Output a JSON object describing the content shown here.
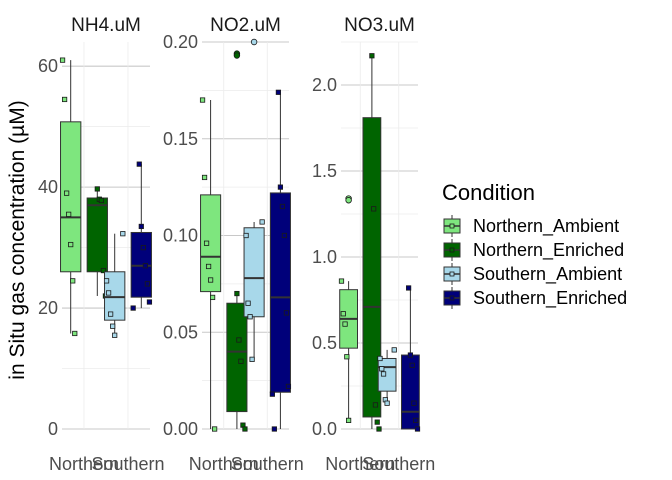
{
  "chart_data": {
    "type": "boxplot",
    "ylabel": "in Situ gas concentration (µM)",
    "xlabel": "",
    "x_categories": [
      "Northern",
      "Southern"
    ],
    "legend": {
      "title": "Condition",
      "placement": "right",
      "entries": [
        {
          "name": "Northern_Ambient",
          "color": "#7ee67e"
        },
        {
          "name": "Northern_Enriched",
          "color": "#006400"
        },
        {
          "name": "Southern_Ambient",
          "color": "#a8d8ea"
        },
        {
          "name": "Southern_Enriched",
          "color": "#00007a"
        }
      ]
    },
    "facets": [
      {
        "label": "NH4.uM",
        "ylim": [
          0,
          64
        ],
        "ticks": [
          0,
          20,
          40,
          60
        ],
        "tick_labels": [
          "0",
          "20",
          "40",
          "60"
        ],
        "groups": [
          {
            "condition": "Northern_Ambient",
            "location": "Northern",
            "min": 15.8,
            "q1": 26,
            "median": 35,
            "q3": 50.8,
            "max": 61,
            "points": [
              61,
              54.5,
              39,
              35.5,
              30.5,
              24.5,
              15.8
            ]
          },
          {
            "condition": "Northern_Enriched",
            "location": "Northern",
            "min": 22,
            "q1": 26,
            "median": 37,
            "q3": 38.2,
            "max": 39.7,
            "points": [
              39.7,
              38,
              37.8,
              26.2,
              22
            ]
          },
          {
            "condition": "Southern_Ambient",
            "location": "Southern",
            "min": 15.5,
            "q1": 18,
            "median": 21.8,
            "q3": 26,
            "max": 32.3,
            "points": [
              32.3,
              24.5,
              22.5,
              19,
              17,
              15.5
            ]
          },
          {
            "condition": "Southern_Enriched",
            "location": "Southern",
            "min": 20,
            "q1": 21.8,
            "median": 27,
            "q3": 32.5,
            "max": 43.8,
            "points": [
              43.8,
              33.5,
              30,
              27,
              24,
              21,
              20
            ]
          }
        ]
      },
      {
        "label": "NO2.uM",
        "ylim": [
          0,
          0.2
        ],
        "ticks": [
          0,
          0.05,
          0.1,
          0.15,
          0.2
        ],
        "tick_labels": [
          "0.00",
          "0.05",
          "0.10",
          "0.15",
          "0.20"
        ],
        "groups": [
          {
            "condition": "Northern_Ambient",
            "location": "Northern",
            "min": 0,
            "q1": 0.071,
            "median": 0.089,
            "q3": 0.121,
            "max": 0.17,
            "points": [
              0.17,
              0.13,
              0.096,
              0.084,
              0.077,
              0.068,
              0
            ]
          },
          {
            "condition": "Northern_Enriched",
            "location": "Northern",
            "min": 0,
            "q1": 0.009,
            "median": 0.04,
            "q3": 0.065,
            "max": 0.07,
            "outliers": [
              0.194,
              0.193
            ],
            "points": [
              0.07,
              0.046,
              0.035,
              0.002,
              0
            ]
          },
          {
            "condition": "Southern_Ambient",
            "location": "Southern",
            "min": 0.036,
            "q1": 0.058,
            "median": 0.078,
            "q3": 0.104,
            "max": 0.107,
            "outliers": [
              0.2
            ],
            "points": [
              0.107,
              0.1,
              0.065,
              0.058,
              0.036
            ]
          },
          {
            "condition": "Southern_Enriched",
            "location": "Southern",
            "min": 0,
            "q1": 0.019,
            "median": 0.068,
            "q3": 0.122,
            "max": 0.174,
            "points": [
              0.174,
              0.125,
              0.115,
              0.1,
              0.06,
              0.022,
              0.018,
              0
            ]
          }
        ]
      },
      {
        "label": "NO3.uM",
        "ylim": [
          0,
          2.25
        ],
        "ticks": [
          0,
          0.5,
          1,
          1.5,
          2
        ],
        "tick_labels": [
          "0.0",
          "0.5",
          "1.0",
          "1.5",
          "2.0"
        ],
        "groups": [
          {
            "condition": "Northern_Ambient",
            "location": "Northern",
            "min": 0.05,
            "q1": 0.47,
            "median": 0.64,
            "q3": 0.81,
            "max": 0.86,
            "outliers": [
              1.34,
              1.33
            ],
            "points": [
              0.86,
              0.67,
              0.61,
              0.42,
              0.05
            ]
          },
          {
            "condition": "Northern_Enriched",
            "location": "Northern",
            "min": 0,
            "q1": 0.07,
            "median": 0.71,
            "q3": 1.81,
            "max": 2.17,
            "points": [
              2.17,
              1.28,
              0.14,
              0.04,
              0
            ]
          },
          {
            "condition": "Southern_Ambient",
            "location": "Southern",
            "min": 0.15,
            "q1": 0.22,
            "median": 0.36,
            "q3": 0.41,
            "max": 0.46,
            "points": [
              0.46,
              0.41,
              0.35,
              0.32,
              0.17,
              0.15
            ]
          },
          {
            "condition": "Southern_Enriched",
            "location": "Southern",
            "min": 0,
            "q1": 0,
            "median": 0.1,
            "q3": 0.43,
            "max": 0.82,
            "points": [
              0.82,
              0.43,
              0.37,
              0.15,
              0.05,
              0
            ]
          }
        ]
      }
    ]
  }
}
